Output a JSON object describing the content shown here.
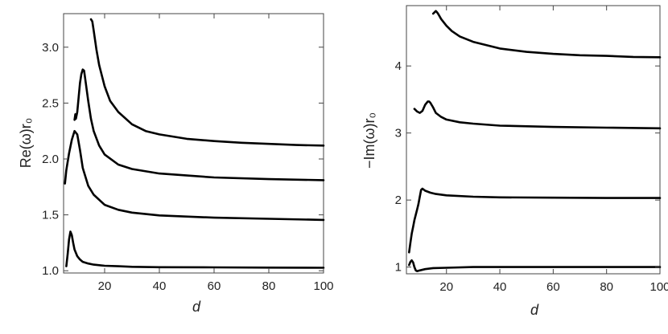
{
  "chart_data": [
    {
      "type": "line",
      "xlabel": "d",
      "ylabel": "Re(ω)r₀",
      "xlim": [
        5,
        100
      ],
      "ylim": [
        0.98,
        3.3
      ],
      "x_ticks": [
        20,
        40,
        60,
        80,
        100
      ],
      "y_ticks": [
        1.0,
        1.5,
        2.0,
        2.5,
        3.0
      ],
      "x_tick_labels": [
        "20",
        "40",
        "60",
        "80",
        "100"
      ],
      "y_tick_labels": [
        "1.0",
        "1.5",
        "2.0",
        "2.5",
        "3.0"
      ],
      "grid": false,
      "series": [
        {
          "x": [
            6,
            6.5,
            7,
            7.5,
            8,
            8.5,
            9,
            10,
            11,
            12,
            14,
            16,
            20,
            25,
            30,
            40,
            60,
            80,
            100
          ],
          "y": [
            1.04,
            1.15,
            1.28,
            1.35,
            1.32,
            1.25,
            1.19,
            1.13,
            1.1,
            1.08,
            1.065,
            1.055,
            1.045,
            1.04,
            1.035,
            1.032,
            1.03,
            1.028,
            1.027
          ]
        },
        {
          "x": [
            5.5,
            6,
            7,
            8,
            9,
            10,
            11,
            12,
            14,
            16,
            20,
            25,
            30,
            40,
            60,
            80,
            100
          ],
          "y": [
            1.78,
            1.9,
            2.05,
            2.17,
            2.25,
            2.22,
            2.08,
            1.92,
            1.76,
            1.68,
            1.59,
            1.545,
            1.52,
            1.495,
            1.475,
            1.465,
            1.455
          ]
        },
        {
          "x": [
            9,
            9.3,
            9.5,
            10,
            10.5,
            11,
            11.5,
            12,
            12.5,
            13,
            14,
            15,
            16,
            18,
            20,
            25,
            30,
            40,
            60,
            80,
            100
          ],
          "y": [
            2.35,
            2.4,
            2.36,
            2.42,
            2.55,
            2.68,
            2.76,
            2.8,
            2.79,
            2.7,
            2.52,
            2.36,
            2.25,
            2.12,
            2.04,
            1.95,
            1.91,
            1.87,
            1.835,
            1.82,
            1.81
          ]
        },
        {
          "x": [
            15,
            15.5,
            16,
            17,
            18,
            20,
            22,
            25,
            30,
            35,
            40,
            50,
            60,
            70,
            80,
            90,
            100
          ],
          "y": [
            3.25,
            3.23,
            3.15,
            2.98,
            2.84,
            2.65,
            2.52,
            2.42,
            2.31,
            2.25,
            2.22,
            2.18,
            2.16,
            2.145,
            2.135,
            2.125,
            2.12
          ]
        }
      ]
    },
    {
      "type": "line",
      "xlabel": "d",
      "ylabel": "−Im(ω)r₀",
      "xlim": [
        5,
        100
      ],
      "ylim": [
        0.9,
        4.9
      ],
      "x_ticks": [
        20,
        40,
        60,
        80,
        100
      ],
      "y_ticks": [
        1,
        2,
        3,
        4
      ],
      "x_tick_labels": [
        "20",
        "40",
        "60",
        "80",
        "100"
      ],
      "y_tick_labels": [
        "1",
        "2",
        "3",
        "4"
      ],
      "grid": false,
      "series": [
        {
          "x": [
            6,
            6.5,
            7,
            7.5,
            8,
            8.5,
            9,
            10,
            12,
            15,
            20,
            30,
            40,
            60,
            80,
            100
          ],
          "y": [
            1.03,
            1.08,
            1.1,
            1.07,
            1.0,
            0.95,
            0.94,
            0.95,
            0.97,
            0.985,
            0.99,
            1.0,
            1.0,
            1.0,
            1.0,
            1.0
          ]
        },
        {
          "x": [
            6,
            6.5,
            7,
            7.5,
            8,
            8.5,
            9,
            9.5,
            10,
            10.5,
            11,
            12,
            14,
            16,
            20,
            30,
            40,
            60,
            80,
            100
          ],
          "y": [
            1.22,
            1.37,
            1.5,
            1.6,
            1.7,
            1.78,
            1.86,
            1.94,
            2.05,
            2.15,
            2.17,
            2.14,
            2.11,
            2.09,
            2.07,
            2.05,
            2.04,
            2.035,
            2.03,
            2.03
          ]
        },
        {
          "x": [
            8,
            9,
            10,
            11,
            12,
            13,
            13.5,
            14,
            15,
            16,
            18,
            20,
            25,
            30,
            40,
            60,
            80,
            100
          ],
          "y": [
            3.36,
            3.32,
            3.3,
            3.33,
            3.42,
            3.47,
            3.47,
            3.45,
            3.38,
            3.3,
            3.24,
            3.2,
            3.16,
            3.14,
            3.11,
            3.09,
            3.08,
            3.07
          ]
        },
        {
          "x": [
            15,
            15.5,
            16,
            16.5,
            17,
            18,
            20,
            22,
            25,
            30,
            40,
            50,
            60,
            70,
            80,
            90,
            100
          ],
          "y": [
            4.78,
            4.8,
            4.82,
            4.8,
            4.77,
            4.7,
            4.6,
            4.52,
            4.44,
            4.36,
            4.26,
            4.21,
            4.18,
            4.16,
            4.15,
            4.135,
            4.13
          ]
        }
      ]
    }
  ]
}
